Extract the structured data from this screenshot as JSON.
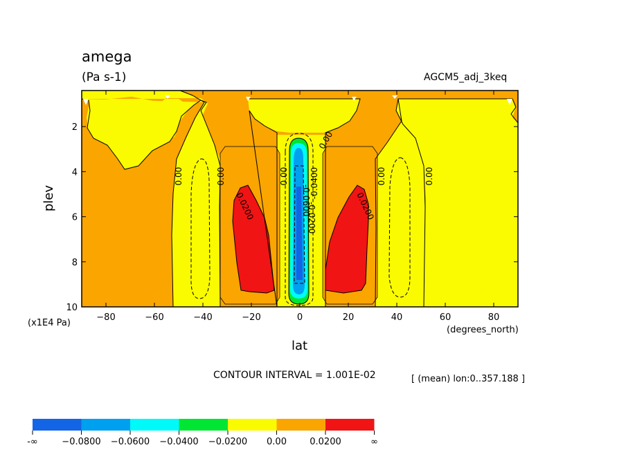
{
  "chart_data": {
    "type": "heatmap",
    "title": "amega",
    "units": "(Pa s-1)",
    "dataset": "AGCM5_adj_3keq",
    "xlabel": "lat",
    "ylabel": "plev",
    "x_unit": "(degrees_north)",
    "y_unit": "(x1E4 Pa)",
    "xlim": [
      -90,
      90
    ],
    "ylim": [
      10,
      0.4
    ],
    "x_ticks": [
      -80,
      -60,
      -40,
      -20,
      0,
      20,
      40,
      60,
      80
    ],
    "x_tick_labels": [
      "−80",
      "−60",
      "−40",
      "−20",
      "0",
      "20",
      "40",
      "60",
      "80"
    ],
    "y_ticks": [
      2,
      4,
      6,
      8,
      10
    ],
    "y_tick_labels": [
      "2",
      "4",
      "6",
      "8",
      "10"
    ],
    "contour_interval_text": "CONTOUR INTERVAL = 1.001E-02",
    "region_text": "[ (mean) lon:0..357.188 ]",
    "contour_labels": [
      "0.00",
      "0.0200",
      "-0.0400",
      "-0.0600",
      "-0.0200"
    ],
    "colorbar": {
      "colors": [
        "#1464e6",
        "#00a0f0",
        "#00fafa",
        "#00e632",
        "#fafa00",
        "#faa500",
        "#f01414"
      ],
      "labels": [
        "-∞",
        "−0.0800",
        "−0.0600",
        "−0.0400",
        "−0.0200",
        "0.00",
        "0.0200",
        "∞"
      ]
    },
    "colors": {
      "background_positive_weak": "#faa500",
      "near_zero": "#fafa00",
      "positive_strong": "#f01414",
      "negative_weak": "#00e632",
      "negative_mid": "#00fafa",
      "negative_strong": "#00a0f0",
      "negative_max": "#1464e6"
    }
  }
}
